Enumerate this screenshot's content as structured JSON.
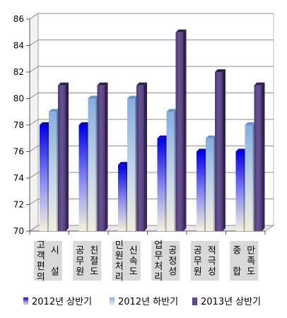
{
  "chart_data": {
    "type": "bar",
    "categories": [
      "고객편의 시설",
      "공무원 친절도",
      "민원처리 신속도",
      "업무처리 공정성",
      "공무원 적극성",
      "종합 만족도"
    ],
    "category_columns": [
      [
        "고객편의",
        "시 설"
      ],
      [
        "공무원",
        "친절도"
      ],
      [
        "민원처리",
        "신속도"
      ],
      [
        "업무처리",
        "공정성"
      ],
      [
        "공무원",
        "적극성"
      ],
      [
        "종 합",
        "만족도"
      ]
    ],
    "series": [
      {
        "name": "2012년 상반기",
        "values": [
          78,
          78,
          75,
          77,
          76,
          76
        ],
        "color": "#1010e0"
      },
      {
        "name": "2012년 하반기",
        "values": [
          79,
          80,
          80,
          79,
          77,
          78
        ],
        "color": "#8aaee0"
      },
      {
        "name": "2013년 상반기",
        "values": [
          81,
          81,
          81,
          85,
          82,
          81
        ],
        "color": "#5b4484"
      }
    ],
    "ylim": [
      70,
      86
    ],
    "yticks": [
      70,
      72,
      74,
      76,
      78,
      80,
      82,
      84,
      86
    ],
    "grid": true,
    "legend_position": "bottom",
    "title": "",
    "xlabel": "",
    "ylabel": ""
  }
}
